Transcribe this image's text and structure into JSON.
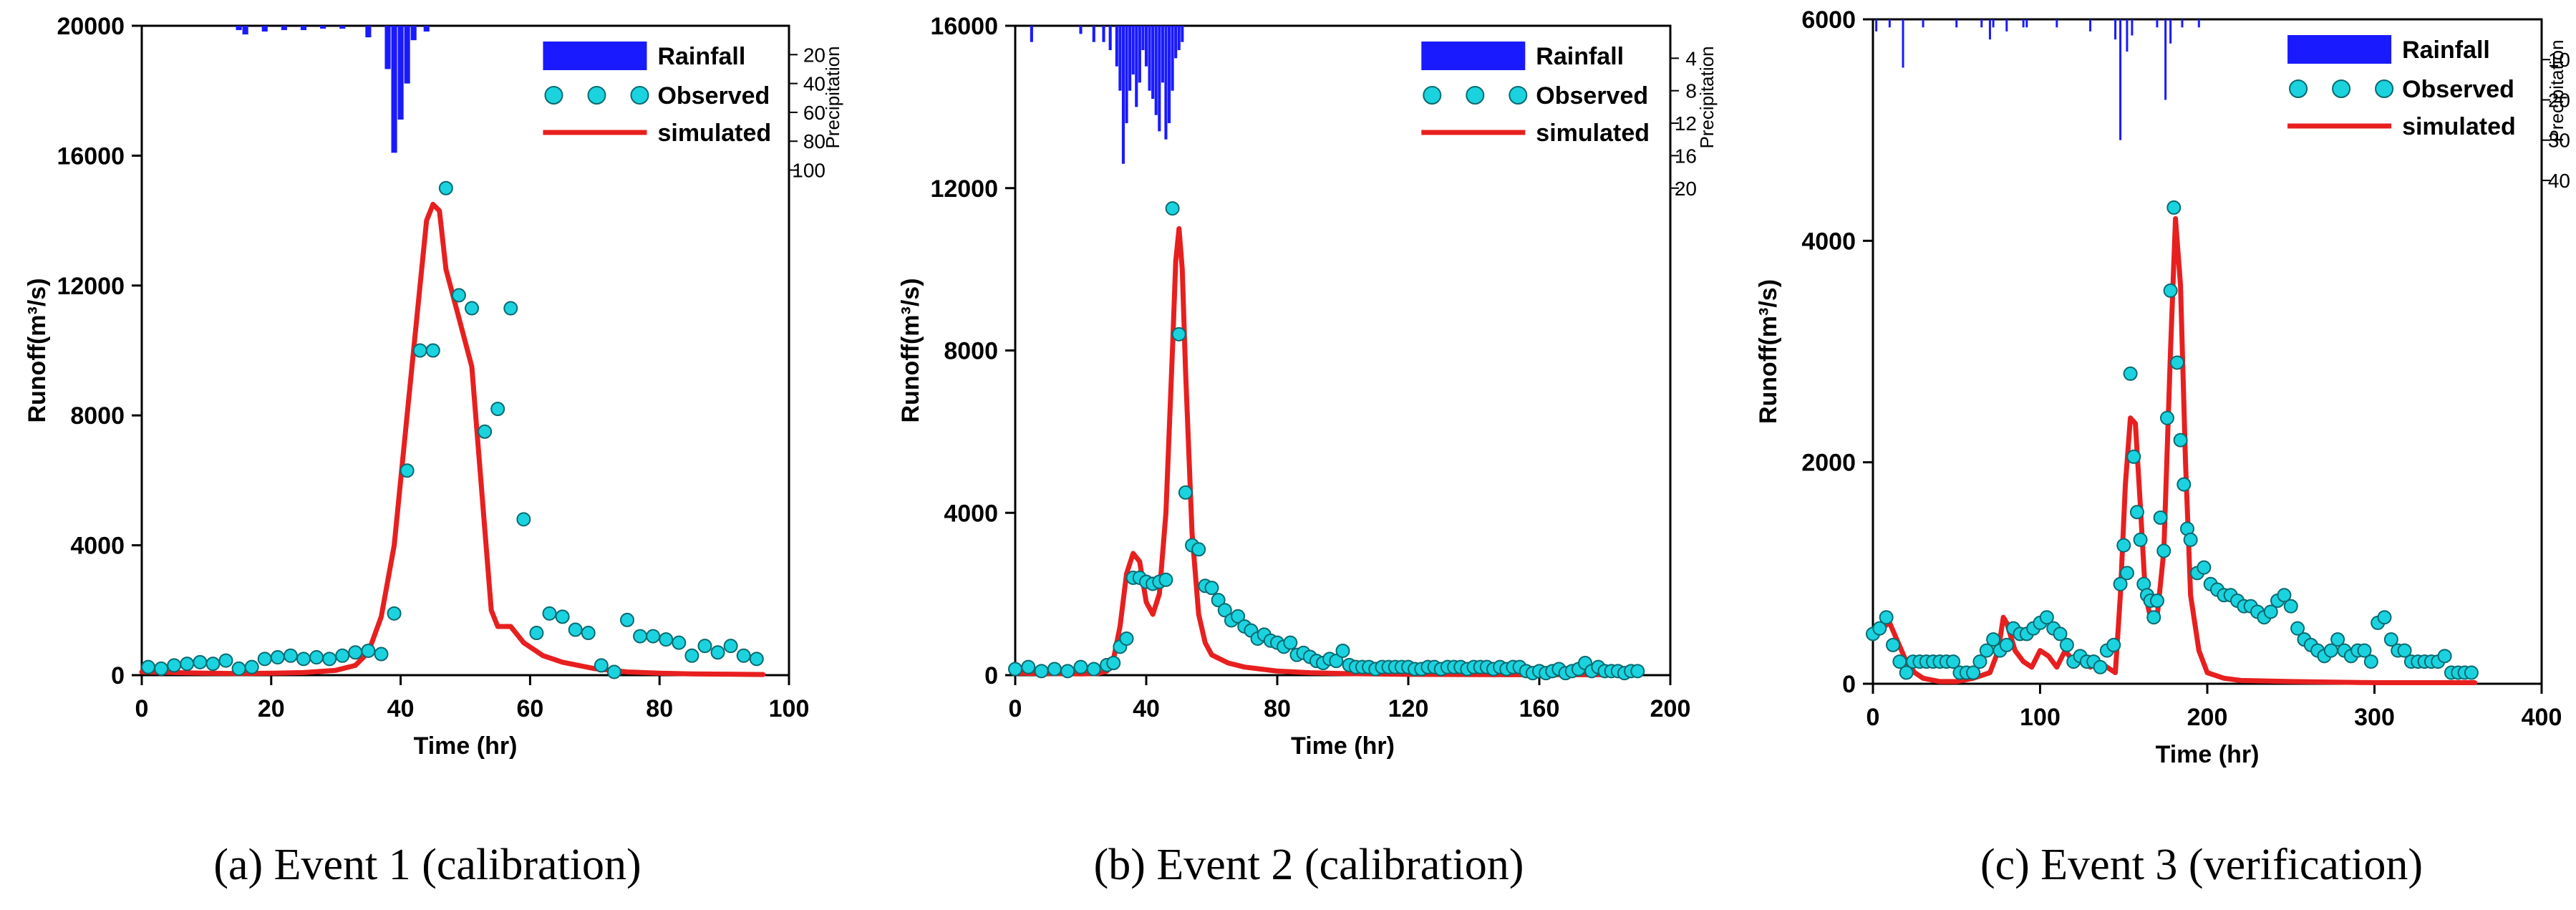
{
  "chart_data": [
    {
      "type": "line",
      "title": "",
      "caption": "(a) Event 1 (calibration)",
      "xlabel": "Time (hr)",
      "ylabel": "Runoff(m³/s)",
      "y2label": "Precipitation",
      "xlim": [
        0,
        100
      ],
      "ylim": [
        0,
        20000
      ],
      "xticks": [
        0,
        20,
        40,
        60,
        80,
        100
      ],
      "yticks": [
        0,
        4000,
        8000,
        12000,
        16000,
        20000
      ],
      "y2lim": [
        0,
        450
      ],
      "y2ticks": [
        20,
        40,
        60,
        80,
        100
      ],
      "legend": {
        "position": "top-right",
        "rainfall": "Rainfall",
        "observed": "Observed",
        "simulated": "simulated"
      },
      "series": [
        {
          "name": "Rainfall",
          "kind": "bar-inverted",
          "x": [
            15,
            16,
            19,
            22,
            25,
            28,
            31,
            35,
            38,
            39,
            40,
            41,
            42,
            44
          ],
          "values": [
            3,
            6,
            4,
            3,
            3,
            2,
            2,
            8,
            30,
            88,
            65,
            40,
            10,
            4
          ]
        },
        {
          "name": "Observed",
          "kind": "scatter",
          "x": [
            1,
            3,
            5,
            7,
            9,
            11,
            13,
            15,
            17,
            19,
            21,
            23,
            25,
            27,
            29,
            31,
            33,
            35,
            37,
            39,
            41,
            43,
            45,
            47,
            49,
            51,
            53,
            55,
            57,
            59,
            61,
            63,
            65,
            67,
            69,
            71,
            73,
            75,
            77,
            79,
            81,
            83,
            85,
            87,
            89,
            91,
            93,
            95
          ],
          "values": [
            250,
            200,
            300,
            350,
            400,
            350,
            450,
            200,
            250,
            500,
            550,
            600,
            500,
            550,
            500,
            600,
            700,
            750,
            650,
            1900,
            6300,
            10000,
            10000,
            15000,
            11700,
            11300,
            7500,
            8200,
            11300,
            4800,
            1300,
            1900,
            1800,
            1400,
            1300,
            300,
            100,
            1700,
            1200,
            1200,
            1100,
            1000,
            600,
            900,
            700,
            900,
            600,
            500
          ]
        },
        {
          "name": "simulated",
          "kind": "line",
          "x": [
            0,
            5,
            10,
            15,
            20,
            25,
            30,
            33,
            35,
            37,
            39,
            41,
            43,
            44,
            45,
            46,
            47,
            49,
            51,
            53,
            54,
            55,
            57,
            59,
            62,
            65,
            70,
            75,
            80,
            85,
            90,
            96
          ],
          "values": [
            100,
            80,
            60,
            50,
            60,
            80,
            150,
            300,
            700,
            1800,
            4000,
            8000,
            12000,
            14000,
            14500,
            14300,
            12500,
            11000,
            9500,
            4500,
            2000,
            1500,
            1500,
            1000,
            600,
            400,
            200,
            100,
            60,
            40,
            30,
            20
          ]
        }
      ]
    },
    {
      "type": "line",
      "title": "",
      "caption": "(b) Event 2 (calibration)",
      "xlabel": "Time (hr)",
      "ylabel": "Runoff(m³/s)",
      "y2label": "Precipitation",
      "xlim": [
        0,
        200
      ],
      "ylim": [
        0,
        16000
      ],
      "xticks": [
        0,
        40,
        80,
        120,
        160,
        200
      ],
      "yticks": [
        0,
        4000,
        8000,
        12000,
        16000
      ],
      "y2lim": [
        0,
        80
      ],
      "y2ticks": [
        4,
        8,
        12,
        16,
        20
      ],
      "legend": {
        "position": "top-right",
        "rainfall": "Rainfall",
        "observed": "Observed",
        "simulated": "simulated"
      },
      "series": [
        {
          "name": "Rainfall",
          "kind": "bar-inverted",
          "x": [
            5,
            20,
            24,
            27,
            29,
            31,
            32,
            33,
            34,
            35,
            36,
            37,
            38,
            39,
            40,
            41,
            42,
            43,
            44,
            45,
            46,
            47,
            48,
            49,
            50,
            51
          ],
          "values": [
            2,
            1,
            2,
            2,
            3,
            5,
            8,
            17,
            12,
            8,
            6,
            10,
            7,
            3,
            5,
            8,
            9,
            11,
            13,
            7,
            14,
            12,
            8,
            4,
            3,
            2
          ]
        },
        {
          "name": "Observed",
          "kind": "scatter",
          "x": [
            0,
            4,
            8,
            12,
            16,
            20,
            24,
            28,
            30,
            32,
            34,
            36,
            38,
            40,
            42,
            44,
            46,
            48,
            50,
            52,
            54,
            56,
            58,
            60,
            62,
            64,
            66,
            68,
            70,
            72,
            74,
            76,
            78,
            80,
            82,
            84,
            86,
            88,
            90,
            92,
            94,
            96,
            98,
            100,
            102,
            104,
            106,
            108,
            110,
            112,
            114,
            116,
            118,
            120,
            122,
            124,
            126,
            128,
            130,
            132,
            134,
            136,
            138,
            140,
            142,
            144,
            146,
            148,
            150,
            152,
            154,
            156,
            158,
            160,
            162,
            164,
            166,
            168,
            170,
            172,
            174,
            176,
            178,
            180,
            182,
            184,
            186,
            188,
            190
          ],
          "values": [
            150,
            200,
            100,
            150,
            100,
            200,
            150,
            250,
            300,
            700,
            900,
            2400,
            2400,
            2300,
            2250,
            2300,
            2350,
            11500,
            8400,
            4500,
            3200,
            3100,
            2200,
            2150,
            1850,
            1600,
            1350,
            1450,
            1200,
            1100,
            900,
            1000,
            850,
            800,
            700,
            800,
            500,
            550,
            450,
            350,
            300,
            400,
            350,
            600,
            250,
            200,
            200,
            200,
            150,
            200,
            200,
            200,
            200,
            200,
            150,
            150,
            200,
            200,
            150,
            200,
            200,
            200,
            150,
            200,
            200,
            200,
            150,
            200,
            150,
            200,
            200,
            100,
            50,
            100,
            50,
            100,
            150,
            50,
            100,
            150,
            300,
            100,
            200,
            100,
            100,
            100,
            50,
            100,
            100
          ]
        },
        {
          "name": "simulated",
          "kind": "line",
          "x": [
            0,
            10,
            20,
            25,
            28,
            30,
            32,
            34,
            36,
            38,
            40,
            42,
            44,
            46,
            48,
            49,
            50,
            51,
            52,
            54,
            56,
            58,
            60,
            65,
            70,
            80,
            90,
            100,
            120,
            150,
            190
          ],
          "values": [
            50,
            40,
            30,
            40,
            100,
            400,
            1200,
            2500,
            3000,
            2800,
            1800,
            1500,
            2000,
            4000,
            8000,
            10200,
            11000,
            10000,
            7500,
            3500,
            1500,
            800,
            500,
            300,
            200,
            100,
            60,
            40,
            20,
            10,
            10
          ]
        }
      ]
    },
    {
      "type": "line",
      "title": "",
      "caption": "(c) Event 3 (verification)",
      "xlabel": "Time (hr)",
      "ylabel": "Runoff(m³/s)",
      "y2label": "Precipitation",
      "xlim": [
        0,
        400
      ],
      "ylim": [
        0,
        6000
      ],
      "xticks": [
        0,
        100,
        200,
        300,
        400
      ],
      "yticks": [
        0,
        2000,
        4000,
        6000
      ],
      "y2lim": [
        0,
        165
      ],
      "y2ticks": [
        10,
        20,
        30,
        40
      ],
      "legend": {
        "position": "top-right",
        "rainfall": "Rainfall",
        "observed": "Observed",
        "simulated": "simulated"
      },
      "series": [
        {
          "name": "Rainfall",
          "kind": "bar-inverted",
          "x": [
            2,
            10,
            18,
            30,
            50,
            65,
            70,
            72,
            80,
            90,
            92,
            110,
            130,
            145,
            148,
            152,
            155,
            170,
            175,
            178,
            185,
            195
          ],
          "values": [
            3,
            2,
            12,
            2,
            2,
            2,
            5,
            2,
            3,
            2,
            2,
            2,
            3,
            5,
            30,
            8,
            4,
            2,
            20,
            6,
            2,
            2
          ]
        },
        {
          "name": "Observed",
          "kind": "scatter",
          "x": [
            0,
            4,
            8,
            12,
            16,
            20,
            24,
            28,
            32,
            36,
            40,
            44,
            48,
            52,
            56,
            60,
            64,
            68,
            72,
            76,
            80,
            84,
            88,
            92,
            96,
            100,
            104,
            108,
            112,
            116,
            120,
            124,
            128,
            132,
            136,
            140,
            144,
            148,
            150,
            152,
            154,
            156,
            158,
            160,
            162,
            164,
            166,
            168,
            170,
            172,
            174,
            176,
            178,
            180,
            182,
            184,
            186,
            188,
            190,
            194,
            198,
            202,
            206,
            210,
            214,
            218,
            222,
            226,
            230,
            234,
            238,
            242,
            246,
            250,
            254,
            258,
            262,
            266,
            270,
            274,
            278,
            282,
            286,
            290,
            294,
            298,
            302,
            306,
            310,
            314,
            318,
            322,
            326,
            330,
            334,
            338,
            342,
            346,
            350,
            354,
            358
          ],
          "values": [
            450,
            500,
            600,
            350,
            200,
            100,
            200,
            200,
            200,
            200,
            200,
            200,
            200,
            100,
            100,
            100,
            200,
            300,
            400,
            300,
            350,
            500,
            450,
            450,
            500,
            550,
            600,
            500,
            450,
            350,
            200,
            250,
            200,
            200,
            150,
            300,
            350,
            900,
            1250,
            1000,
            2800,
            2050,
            1550,
            1300,
            900,
            800,
            750,
            600,
            750,
            1500,
            1200,
            2400,
            3550,
            4300,
            2900,
            2200,
            1800,
            1400,
            1300,
            1000,
            1050,
            900,
            850,
            800,
            800,
            750,
            700,
            700,
            650,
            600,
            650,
            750,
            800,
            700,
            500,
            400,
            350,
            300,
            250,
            300,
            400,
            300,
            250,
            300,
            300,
            200,
            550,
            600,
            400,
            300,
            300,
            200,
            200,
            200,
            200,
            200,
            250,
            100,
            100,
            100,
            100
          ]
        },
        {
          "name": "simulated",
          "kind": "line",
          "x": [
            0,
            10,
            20,
            25,
            30,
            40,
            50,
            60,
            70,
            75,
            78,
            80,
            85,
            90,
            95,
            100,
            105,
            110,
            115,
            120,
            125,
            130,
            135,
            140,
            145,
            148,
            151,
            154,
            157,
            160,
            163,
            166,
            170,
            174,
            178,
            181,
            184,
            187,
            190,
            195,
            200,
            210,
            220,
            250,
            300,
            360
          ],
          "values": [
            450,
            550,
            200,
            100,
            50,
            20,
            20,
            50,
            100,
            300,
            600,
            550,
            300,
            200,
            150,
            300,
            250,
            150,
            300,
            200,
            250,
            150,
            200,
            150,
            100,
            800,
            1800,
            2400,
            2350,
            1600,
            800,
            600,
            600,
            1200,
            3000,
            4200,
            3600,
            2000,
            800,
            300,
            100,
            50,
            30,
            20,
            10,
            10
          ]
        }
      ]
    }
  ]
}
